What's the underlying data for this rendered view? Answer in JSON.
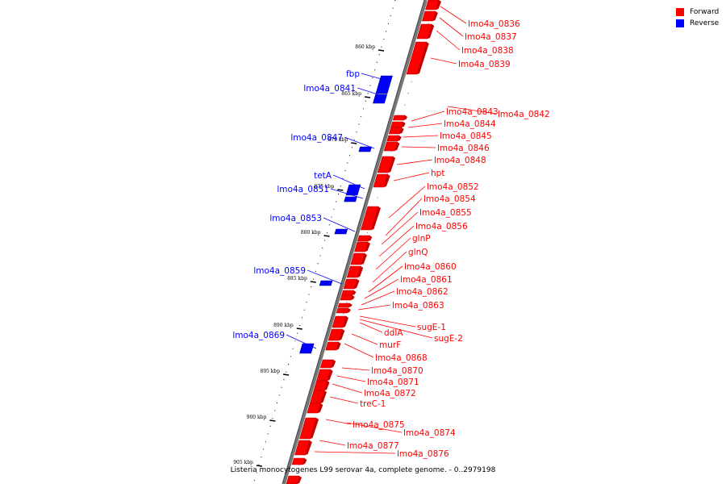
{
  "legend": [
    {
      "label": "Forward",
      "color": "#ff0000"
    },
    {
      "label": "Reverse",
      "color": "#0000ff"
    }
  ],
  "caption": "Listeria monocytogenes L99 serovar 4a, complete genome. - 0..2979198",
  "ticks": [
    "860 kbp",
    "865 kbp",
    "870 kbp",
    "875 kbp",
    "880 kbp",
    "885 kbp",
    "890 kbp",
    "895 kbp",
    "900 kbp",
    "905 kbp"
  ],
  "forward_labels": [
    "lmo4a_0836",
    "lmo4a_0837",
    "lmo4a_0838",
    "lmo4a_0839",
    "lmo4a_0843",
    "lmo4a_0842",
    "lmo4a_0844",
    "lmo4a_0845",
    "lmo4a_0846",
    "lmo4a_0848",
    "hpt",
    "lmo4a_0852",
    "lmo4a_0854",
    "lmo4a_0855",
    "lmo4a_0856",
    "glnP",
    "glnQ",
    "lmo4a_0860",
    "lmo4a_0861",
    "lmo4a_0862",
    "lmo4a_0863",
    "sugE-1",
    "ddlA",
    "sugE-2",
    "murF",
    "lmo4a_0868",
    "lmo4a_0870",
    "lmo4a_0871",
    "lmo4a_0872",
    "treC-1",
    "lmo4a_0875",
    "lmo4a_0874",
    "lmo4a_0877",
    "lmo4a_0876"
  ],
  "reverse_labels": [
    "fbp",
    "lmo4a_0841",
    "lmo4a_0847",
    "tetA",
    "lmo4a_0851",
    "lmo4a_0853",
    "lmo4a_0859",
    "lmo4a_0869"
  ]
}
